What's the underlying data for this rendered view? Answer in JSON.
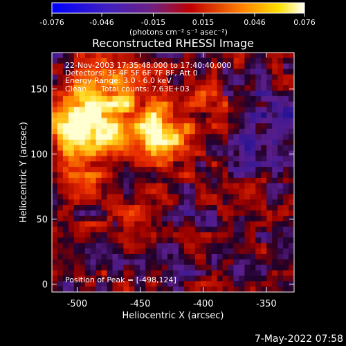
{
  "colorbar": {
    "ticks": [
      "-0.076",
      "-0.046",
      "-0.015",
      "0.015",
      "0.046",
      "0.076"
    ],
    "tick_values": [
      -0.076,
      -0.046,
      -0.015,
      0.015,
      0.046,
      0.076
    ],
    "range": [
      -0.076,
      0.076
    ],
    "units_label": "(photons cm⁻² s⁻¹ asec⁻²)"
  },
  "chart_data": {
    "type": "heatmap",
    "title": "Reconstructed RHESSI Image",
    "xlabel": "Heliocentric X (arcsec)",
    "ylabel": "Heliocentric Y (arcsec)",
    "xlim": [
      -520,
      -328
    ],
    "ylim": [
      -6,
      178
    ],
    "x_ticks": [
      "-500",
      "-450",
      "-400",
      "-350"
    ],
    "x_tick_values": [
      -500,
      -450,
      -400,
      -350
    ],
    "y_ticks": [
      "0",
      "50",
      "100",
      "150"
    ],
    "y_tick_values": [
      0,
      50,
      100,
      150
    ],
    "colormap": "rainbow-blue-purple-red-orange-yellow-white",
    "peak_position": [
      -498,
      124
    ],
    "annotations": {
      "time": "22-Nov-2003 17:35:48.000 to 17:40:40.000",
      "detectors": "Detectors: 3F 4F 5F 6F 7F 8F, Att 0",
      "energy": "Energy Range: 3.0 - 6.0 keV",
      "clean_label": "Clean",
      "total_counts": "Total counts: 7.63E+03",
      "peak": "Position of Peak = [-498,124]"
    }
  },
  "footer": {
    "timestamp": "7-May-2022 07:58"
  }
}
